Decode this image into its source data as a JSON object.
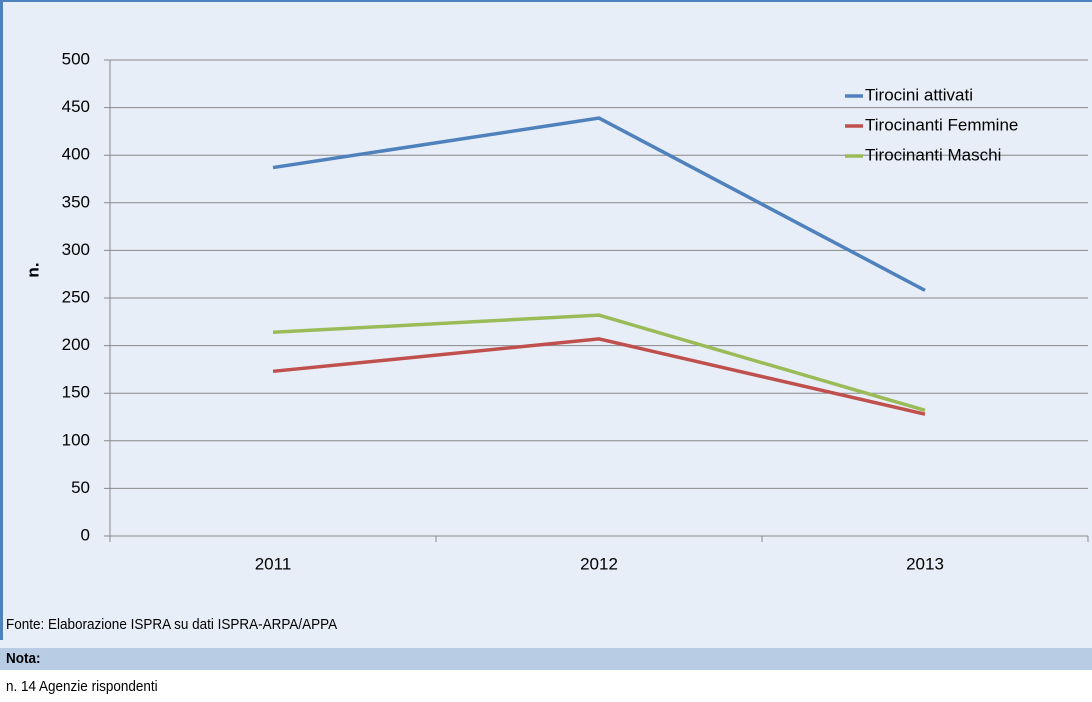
{
  "chart_data": {
    "type": "line",
    "y_label": "n.",
    "categories": [
      "2011",
      "2012",
      "2013"
    ],
    "series": [
      {
        "name": "Tirocini attivati",
        "color": "#4f81bd",
        "values": [
          387,
          439,
          258
        ]
      },
      {
        "name": "Tirocinanti Femmine",
        "color": "#c0504d",
        "values": [
          173,
          207,
          128
        ]
      },
      {
        "name": "Tirocinanti Maschi",
        "color": "#9bbb59",
        "values": [
          214,
          232,
          132
        ]
      }
    ],
    "ylim": [
      0,
      500
    ],
    "yticks": [
      0,
      50,
      100,
      150,
      200,
      250,
      300,
      350,
      400,
      450,
      500
    ],
    "grid": true,
    "legend": "top-right"
  },
  "footer": {
    "source": "Fonte: Elaborazione ISPRA su dati ISPRA-ARPA/APPA",
    "note_title": "Nota:",
    "note": "n. 14 Agenzie rispondenti"
  }
}
